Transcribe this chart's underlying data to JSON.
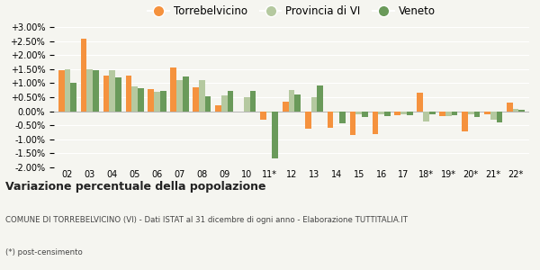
{
  "categories": [
    "02",
    "03",
    "04",
    "05",
    "06",
    "07",
    "08",
    "09",
    "10",
    "11*",
    "12",
    "13",
    "14",
    "15",
    "16",
    "17",
    "18*",
    "19*",
    "20*",
    "21*",
    "22*"
  ],
  "torrebelvicino": [
    1.45,
    2.58,
    1.28,
    1.27,
    0.78,
    1.57,
    0.85,
    0.2,
    0.0,
    -0.3,
    0.35,
    -0.62,
    -0.6,
    -0.85,
    -0.82,
    -0.15,
    0.65,
    -0.18,
    -0.72,
    -0.1,
    0.3
  ],
  "provincia_vi": [
    1.48,
    1.5,
    1.45,
    0.88,
    0.7,
    1.1,
    1.1,
    0.55,
    0.5,
    -0.05,
    0.75,
    0.5,
    -0.05,
    -0.1,
    -0.1,
    -0.12,
    -0.35,
    -0.18,
    -0.1,
    -0.3,
    0.08
  ],
  "veneto": [
    1.02,
    1.45,
    1.22,
    0.82,
    0.72,
    1.25,
    0.52,
    0.72,
    0.72,
    -1.68,
    0.6,
    0.92,
    -0.42,
    -0.22,
    -0.18,
    -0.15,
    -0.12,
    -0.15,
    -0.22,
    -0.4,
    0.05
  ],
  "color_torre": "#f5923e",
  "color_prov": "#b5c9a0",
  "color_veneto": "#6a9a5a",
  "bg_color": "#f5f5f0",
  "title": "Variazione percentuale della popolazione",
  "subtitle": "COMUNE DI TORREBELVICINO (VI) - Dati ISTAT al 31 dicembre di ogni anno - Elaborazione TUTTITALIA.IT",
  "footnote": "(*) post-censimento",
  "legend_labels": [
    "Torrebelvicino",
    "Provincia di VI",
    "Veneto"
  ],
  "ylim": [
    -2.0,
    3.0
  ],
  "yticks": [
    -2.0,
    -1.5,
    -1.0,
    -0.5,
    0.0,
    0.5,
    1.0,
    1.5,
    2.0,
    2.5,
    3.0
  ]
}
